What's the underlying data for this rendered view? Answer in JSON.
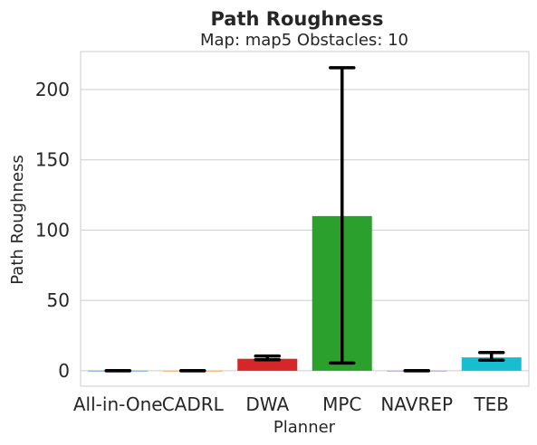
{
  "chart_data": {
    "type": "bar",
    "title": "Path Roughness",
    "subtitle": "Map: map5 Obstacles: 10",
    "xlabel": "Planner",
    "ylabel": "Path Roughness",
    "categories": [
      "All-in-One",
      "CADRL",
      "DWA",
      "MPC",
      "NAVREP",
      "TEB"
    ],
    "values": [
      0,
      0,
      8.5,
      110,
      0,
      9.5
    ],
    "error_low": [
      0,
      0,
      7.8,
      5.5,
      0,
      7.5
    ],
    "error_high": [
      0,
      0,
      10.5,
      215.5,
      0,
      13
    ],
    "colors": [
      "#1f77b4",
      "#ff7f0e",
      "#d62728",
      "#2ca02c",
      "#9467bd",
      "#17becf"
    ],
    "yticks": [
      0,
      50,
      100,
      150,
      200
    ],
    "ylim": [
      -11,
      227
    ],
    "grid": true,
    "legend": "none"
  }
}
